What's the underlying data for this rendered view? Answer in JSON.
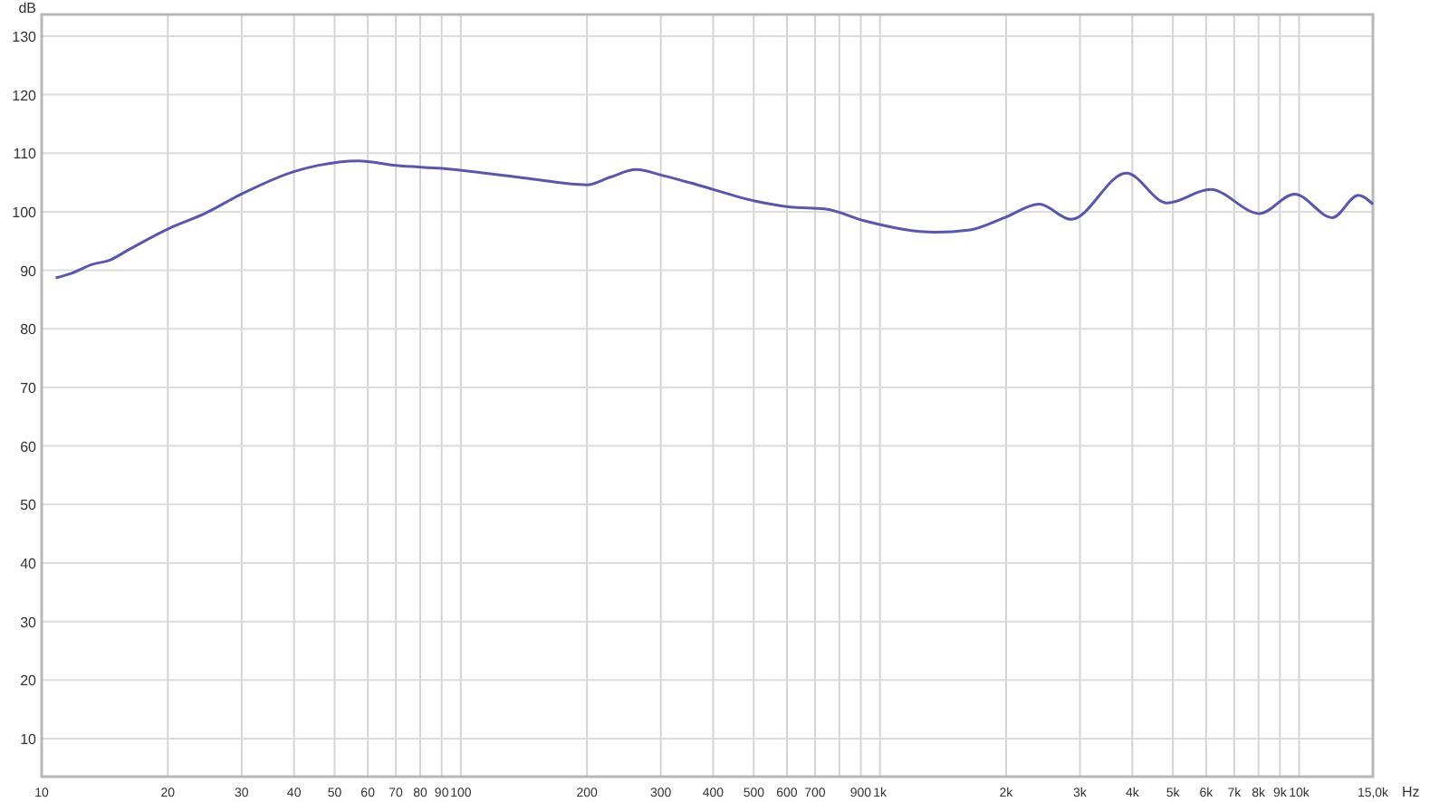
{
  "chart_data": {
    "type": "line",
    "ylabel": "dB",
    "xlabel": "Hz",
    "log": "x",
    "grid": true,
    "marker": "none",
    "line_style": "solid",
    "x": [
      10.8,
      11.8,
      13.2,
      14.5,
      16.2,
      20.2,
      24.5,
      30.1,
      40.1,
      45.5,
      56.9,
      70,
      90.3,
      141,
      200,
      227,
      262,
      303,
      367,
      505,
      611,
      738,
      924,
      1353,
      1640,
      1984,
      2399,
      2857,
      3870,
      4840,
      6140,
      8050,
      9750,
      12000,
      13840,
      15000
    ],
    "series": [
      {
        "color": "#5a55b0",
        "values": [
          88.7,
          89.5,
          91.0,
          91.7,
          93.6,
          97.2,
          99.7,
          103.1,
          106.9,
          107.9,
          108.7,
          107.9,
          107.4,
          105.8,
          104.6,
          105.9,
          107.2,
          106.2,
          104.6,
          101.8,
          100.8,
          100.5,
          98.4,
          96.5,
          96.9,
          99.0,
          101.3,
          98.7,
          106.6,
          101.5,
          103.8,
          99.7,
          103.0,
          99.0,
          102.8,
          101.3
        ]
      }
    ],
    "xlim": [
      10,
      15000
    ],
    "ylim": [
      3.5,
      133.7
    ],
    "xticks": [
      10,
      20,
      30,
      40,
      50,
      60,
      70,
      80,
      90,
      100,
      200,
      300,
      400,
      500,
      600,
      700,
      {
        "value": 800,
        "label": null
      },
      900,
      {
        "value": 1000,
        "label": "1k"
      },
      {
        "value": 2000,
        "label": "2k"
      },
      {
        "value": 3000,
        "label": "3k"
      },
      {
        "value": 4000,
        "label": "4k"
      },
      {
        "value": 5000,
        "label": "5k"
      },
      {
        "value": 6000,
        "label": "6k"
      },
      {
        "value": 7000,
        "label": "7k"
      },
      {
        "value": 8000,
        "label": "8k"
      },
      {
        "value": 9000,
        "label": "9k"
      },
      {
        "value": 10000,
        "label": "10k"
      },
      {
        "value": 15000,
        "label": "15,0k"
      }
    ],
    "yticks": [
      10,
      20,
      30,
      40,
      50,
      60,
      70,
      80,
      90,
      100,
      110,
      120,
      130
    ]
  }
}
